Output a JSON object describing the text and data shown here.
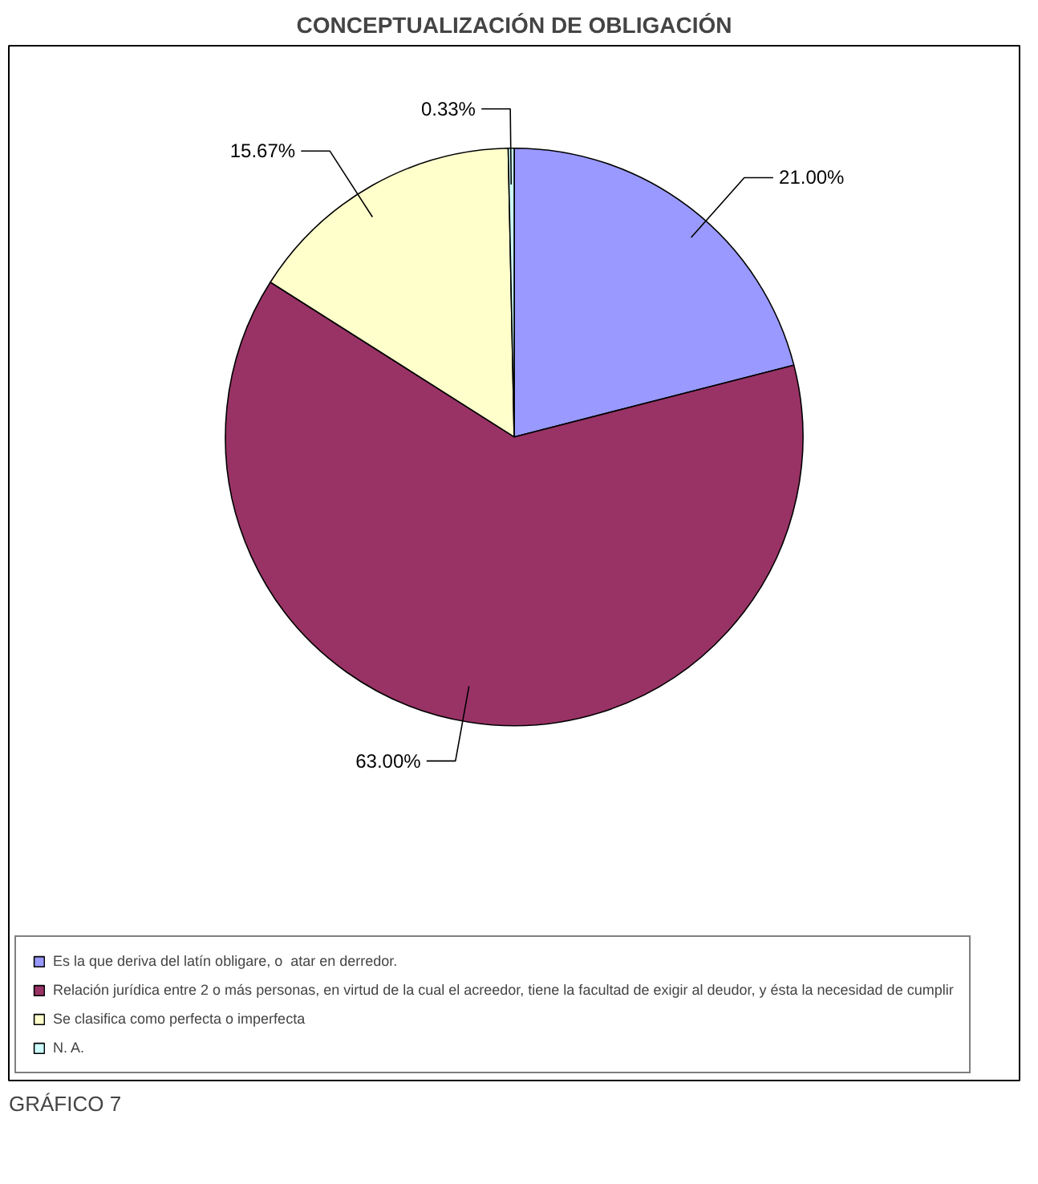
{
  "chart_data": {
    "type": "pie",
    "title": "CONCEPTUALIZACIÓN DE OBLIGACIÓN",
    "categories": [
      "Es la que deriva del latín obligare, o  atar en derredor.",
      "Relación jurídica entre 2 o más personas, en virtud de la cual el acreedor, tiene la facultad de exigir al deudor, y ésta la necesidad de cumplir",
      "Se clasifica como perfecta o imperfecta",
      "N. A."
    ],
    "values": [
      21.0,
      63.0,
      15.67,
      0.33
    ],
    "colors": [
      "#9999ff",
      "#993366",
      "#ffffcc",
      "#ccffff"
    ],
    "value_labels": [
      "21.00%",
      "63.00%",
      "15.67%",
      "0.33%"
    ],
    "legend": "bottom",
    "annotations": [
      "GRÁFICO 7"
    ]
  }
}
